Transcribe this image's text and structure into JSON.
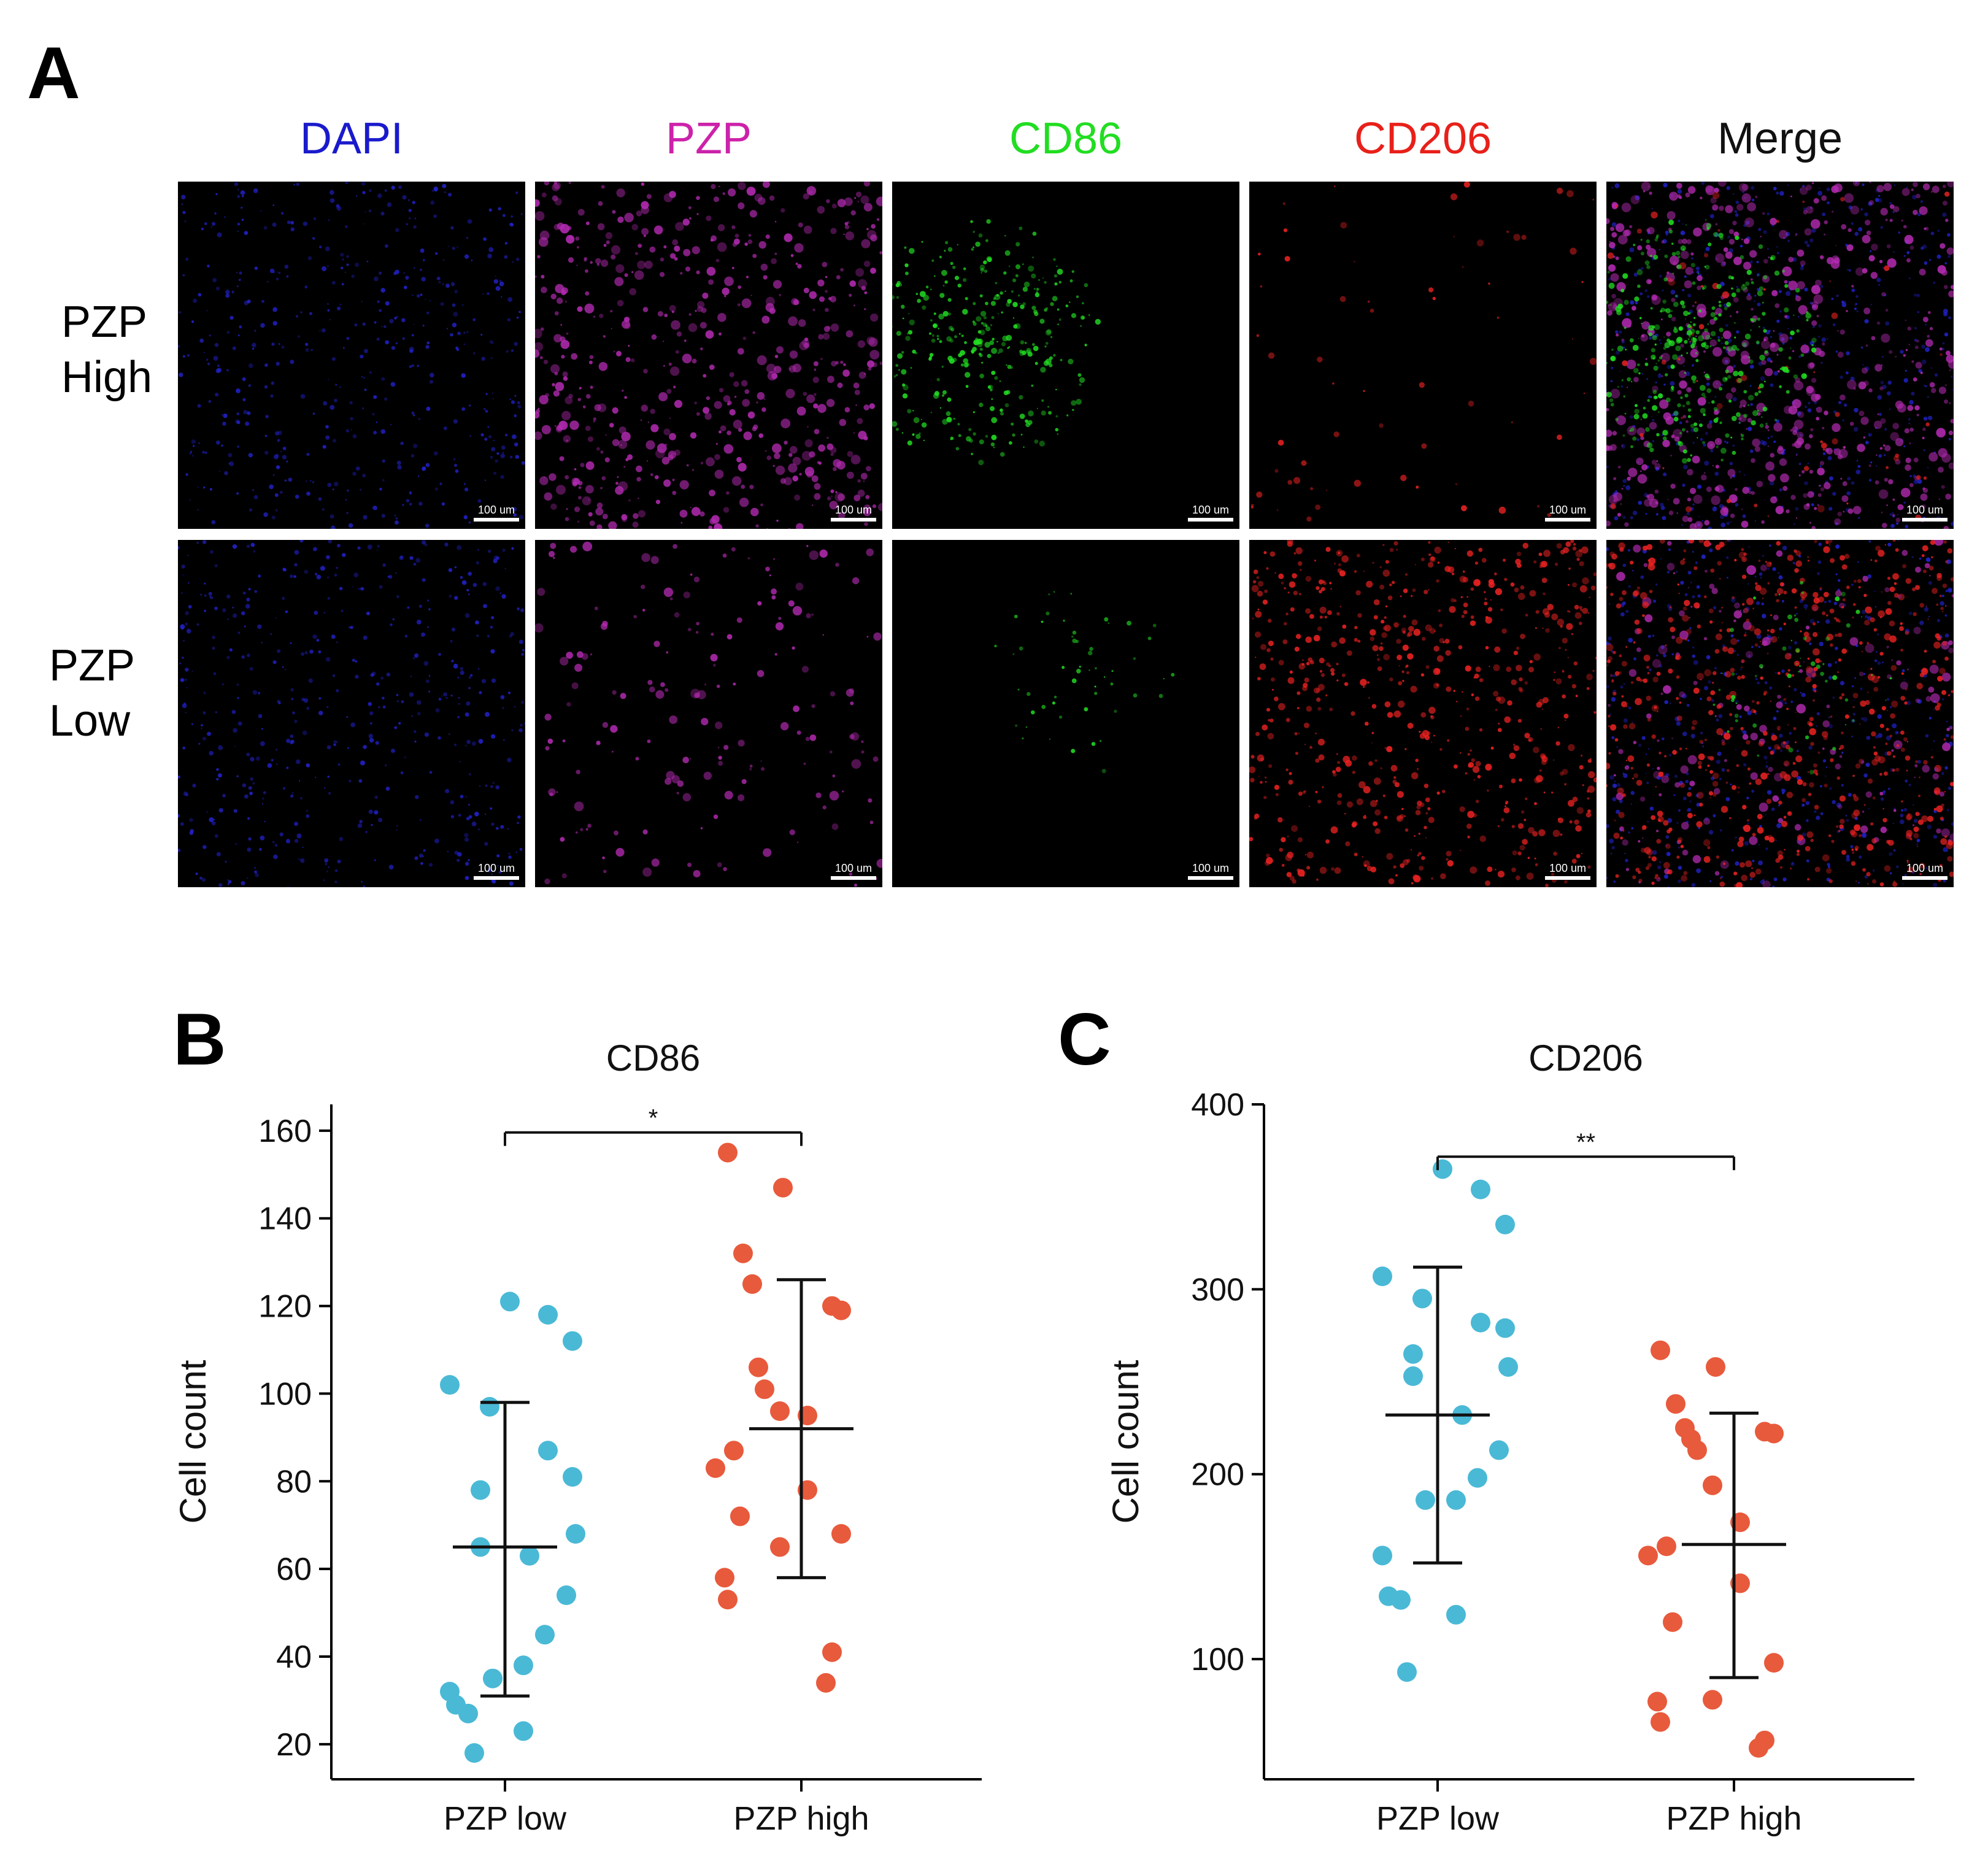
{
  "panel_a": {
    "letter": "A",
    "channels": [
      {
        "name": "DAPI",
        "color": "#1a1acc"
      },
      {
        "name": "PZP",
        "color": "#cc22aa"
      },
      {
        "name": "CD86",
        "color": "#22dd22"
      },
      {
        "name": "CD206",
        "color": "#e8201a"
      },
      {
        "name": "Merge",
        "color": "#111111"
      }
    ],
    "rows": [
      {
        "label_line1": "PZP",
        "label_line2": "High"
      },
      {
        "label_line1": "PZP",
        "label_line2": "Low"
      }
    ],
    "scale_bar_label": "100 um"
  },
  "chart_data": [
    {
      "panel_letter": "B",
      "type": "scatter",
      "title": "CD86",
      "ylabel": "Cell count",
      "categories": [
        "PZP low",
        "PZP high"
      ],
      "ylim": [
        12,
        166
      ],
      "yticks": [
        20,
        40,
        60,
        80,
        100,
        120,
        140,
        160
      ],
      "significance": "*",
      "series": [
        {
          "category": "PZP low",
          "color": "#4ab9d6",
          "values": [
            121,
            118,
            112,
            102,
            97,
            87,
            81,
            78,
            68,
            65,
            63,
            54,
            45,
            38,
            35,
            32,
            29,
            27,
            23,
            18
          ],
          "mean": 65,
          "error_low": 31,
          "error_high": 98
        },
        {
          "category": "PZP high",
          "color": "#e85a3c",
          "values": [
            155,
            147,
            132,
            125,
            120,
            119,
            106,
            101,
            96,
            95,
            87,
            83,
            78,
            72,
            68,
            65,
            58,
            53,
            41,
            34
          ],
          "mean": 92,
          "error_low": 58,
          "error_high": 126
        }
      ]
    },
    {
      "panel_letter": "C",
      "type": "scatter",
      "title": "CD206",
      "ylabel": "Cell count",
      "categories": [
        "PZP low",
        "PZP high"
      ],
      "ylim": [
        35,
        400
      ],
      "yticks": [
        100,
        200,
        300,
        400
      ],
      "significance": "**",
      "series": [
        {
          "category": "PZP low",
          "color": "#4ab9d6",
          "values": [
            365,
            354,
            335,
            307,
            295,
            282,
            279,
            265,
            258,
            253,
            232,
            213,
            198,
            186,
            186,
            156,
            134,
            132,
            124,
            93
          ],
          "mean": 232,
          "error_low": 152,
          "error_high": 312
        },
        {
          "category": "PZP high",
          "color": "#e85a3c",
          "values": [
            267,
            258,
            238,
            225,
            223,
            222,
            219,
            213,
            194,
            174,
            161,
            156,
            141,
            120,
            98,
            78,
            77,
            66,
            56,
            52
          ],
          "mean": 162,
          "error_low": 90,
          "error_high": 233
        }
      ]
    }
  ]
}
